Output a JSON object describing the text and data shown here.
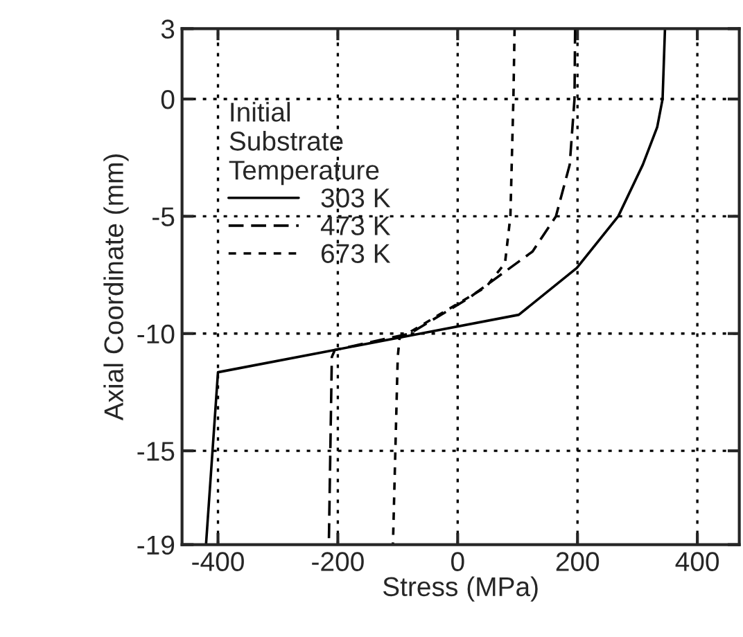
{
  "chart_data": {
    "type": "line",
    "xlabel": "Stress (MPa)",
    "ylabel": "Axial Coordinate (mm)",
    "legend_title": "Initial\nSubstrate\nTemperature",
    "legend": "top left",
    "grid": true,
    "xlim": [
      -460,
      470
    ],
    "xticks": [
      -400,
      -200,
      0,
      200,
      400
    ],
    "ylim": [
      -19,
      3
    ],
    "yticks": [
      -19,
      -15,
      -10,
      -5,
      0,
      3
    ],
    "series": [
      {
        "name": "303 K",
        "color": "#000000",
        "line_style": "solid",
        "x": [
          346,
          342,
          333,
          309,
          268,
          199,
          102,
          -62,
          -400,
          -420
        ],
        "values": [
          3,
          0,
          -1.2,
          -2.8,
          -5,
          -7.2,
          -9.2,
          -10,
          -11.65,
          -19
        ]
      },
      {
        "name": "473 K",
        "color": "#000000",
        "line_style": "dashed",
        "x": [
          196,
          195,
          187,
          164,
          125,
          18,
          -80,
          -205,
          -210,
          -215
        ],
        "values": [
          3,
          0,
          -2.8,
          -5,
          -6.5,
          -8.5,
          -10,
          -10.7,
          -11,
          -19
        ]
      },
      {
        "name": "673 K",
        "color": "#000000",
        "line_style": "dotted",
        "x": [
          95,
          93,
          88,
          79,
          48,
          2,
          -97,
          -100,
          -108
        ],
        "values": [
          3,
          0,
          -5,
          -7,
          -8,
          -8.7,
          -10.2,
          -11,
          -19
        ]
      }
    ]
  }
}
